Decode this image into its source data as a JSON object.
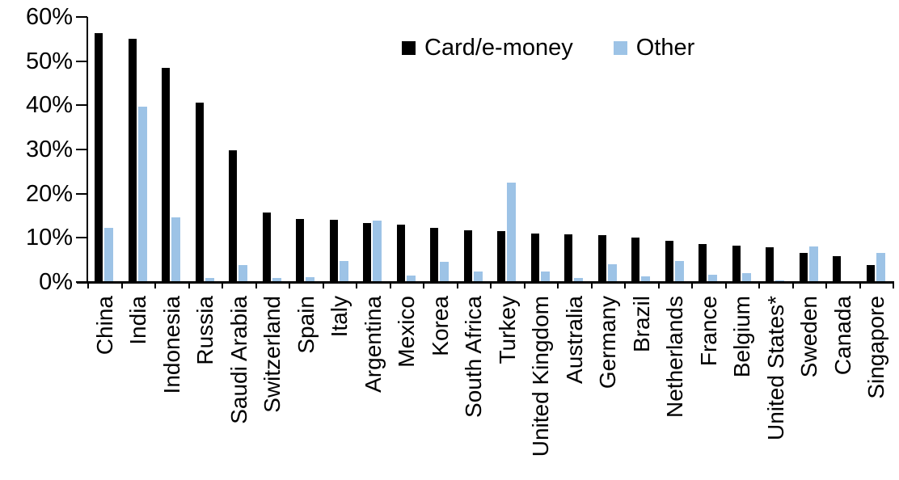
{
  "chart_data": {
    "type": "bar",
    "title": "",
    "xlabel": "",
    "ylabel": "",
    "categories": [
      "China",
      "India",
      "Indonesia",
      "Russia",
      "Saudi Arabia",
      "Switzerland",
      "Spain",
      "Italy",
      "Argentina",
      "Mexico",
      "Korea",
      "South Africa",
      "Turkey",
      "United Kingdom",
      "Australia",
      "Germany",
      "Brazil",
      "Netherlands",
      "France",
      "Belgium",
      "United States*",
      "Sweden",
      "Canada",
      "Singapore"
    ],
    "series": [
      {
        "name": "Card/e-money",
        "color": "#000000",
        "values": [
          56.3,
          55.0,
          48.4,
          40.6,
          29.8,
          15.7,
          14.2,
          14.0,
          13.3,
          12.9,
          12.2,
          11.7,
          11.5,
          11.0,
          10.8,
          10.6,
          10.0,
          9.3,
          8.6,
          8.2,
          7.9,
          6.6,
          5.9,
          3.9
        ]
      },
      {
        "name": "Other",
        "color": "#9DC3E6",
        "values": [
          12.3,
          39.7,
          14.6,
          1.0,
          3.9,
          0.9,
          1.1,
          4.7,
          13.9,
          1.4,
          4.6,
          2.4,
          22.5,
          2.4,
          1.0,
          4.0,
          1.3,
          4.8,
          1.6,
          2.1,
          0.4,
          8.0,
          0,
          6.6
        ]
      }
    ],
    "ylim": [
      0,
      60
    ],
    "yticks": [
      "0%",
      "10%",
      "20%",
      "30%",
      "40%",
      "50%",
      "60%"
    ],
    "ytick_values": [
      0,
      10,
      20,
      30,
      40,
      50,
      60
    ],
    "grid": "off",
    "legend_position": "top-center",
    "axis_color": "#000000",
    "background_color": "#FFFFFF"
  }
}
